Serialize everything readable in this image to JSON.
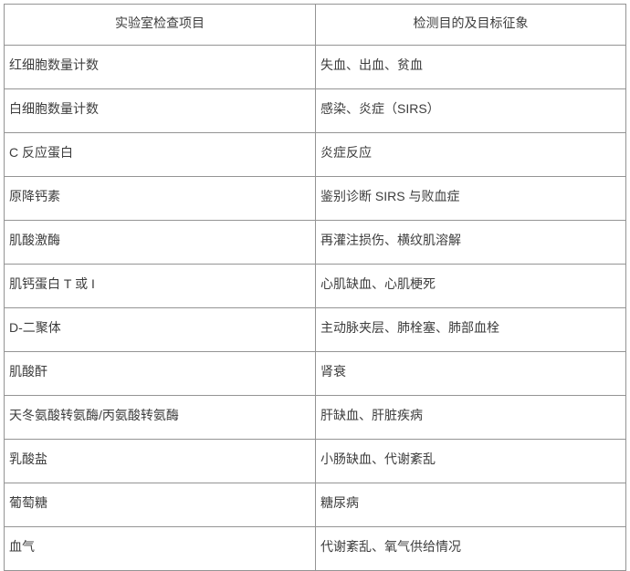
{
  "table": {
    "headers": {
      "item": "实验室检查项目",
      "target": "检测目的及目标征象"
    },
    "rows": [
      {
        "item": "红细胞数量计数",
        "target": "失血、出血、贫血"
      },
      {
        "item": "白细胞数量计数",
        "target": "感染、炎症（SIRS）"
      },
      {
        "item": "C 反应蛋白",
        "target": "炎症反应"
      },
      {
        "item": "原降钙素",
        "target": "鉴别诊断 SIRS 与败血症"
      },
      {
        "item": "肌酸激酶",
        "target": "再灌注损伤、横纹肌溶解"
      },
      {
        "item": "肌钙蛋白 T 或 I",
        "target": "心肌缺血、心肌梗死"
      },
      {
        "item": "D-二聚体",
        "target": "主动脉夹层、肺栓塞、肺部血栓"
      },
      {
        "item": "肌酸酐",
        "target": "肾衰"
      },
      {
        "item": "天冬氨酸转氨酶/丙氨酸转氨酶",
        "target": "肝缺血、肝脏疾病"
      },
      {
        "item": "乳酸盐",
        "target": "小肠缺血、代谢紊乱"
      },
      {
        "item": "葡萄糖",
        "target": "糖尿病"
      },
      {
        "item": "血气",
        "target": "代谢紊乱、氧气供给情况"
      }
    ],
    "colors": {
      "border": "#949494",
      "text": "#3d3d3d",
      "background": "#ffffff"
    }
  }
}
